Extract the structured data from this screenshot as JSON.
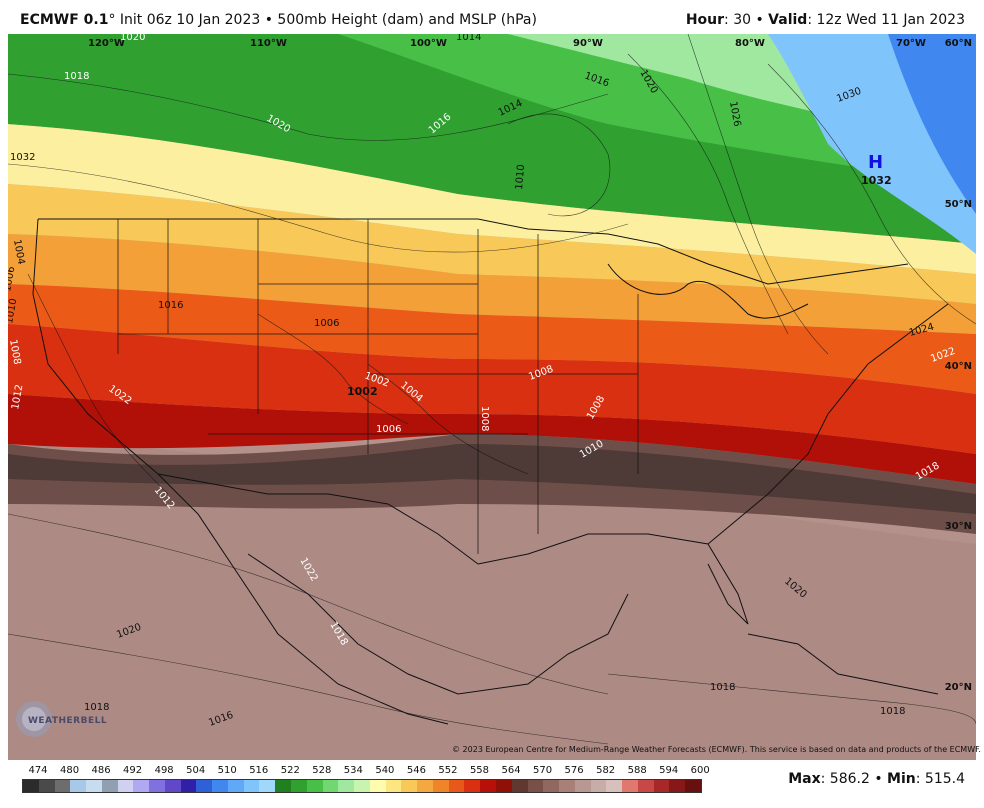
{
  "header": {
    "model": "ECMWF 0.1",
    "init": "° Init 06z 10 Jan 2023 • 500mb Height (dam) and MSLP (hPa)",
    "hour_label": "Hour",
    "hour_value": ": 30 • ",
    "valid_label": "Valid",
    "valid_value": ": 12z Wed 11 Jan 2023"
  },
  "longitude_labels": [
    "120°W",
    "110°W",
    "100°W",
    "90°W",
    "80°W",
    "70°W"
  ],
  "latitude_labels": [
    "60°N",
    "50°N",
    "40°N",
    "30°N",
    "20°N"
  ],
  "pressure_labels": [
    "1020",
    "1014",
    "1018",
    "1020",
    "1016",
    "1014",
    "1010",
    "1016",
    "1020",
    "1026",
    "1030",
    "1032",
    "1024",
    "1022",
    "1018",
    "1004",
    "1006",
    "1010",
    "1008",
    "1012",
    "1022",
    "1016",
    "1006",
    "1002",
    "1004",
    "1006",
    "1008",
    "1008",
    "1008",
    "1010",
    "1012",
    "1022",
    "1020",
    "1018",
    "1020",
    "1018",
    "1016",
    "1018",
    "1018"
  ],
  "high_label": "H",
  "high_value": "1032",
  "low_value": "1002",
  "logo_text": "WEATHERBELL",
  "copyright": "© 2023 European Centre for Medium-Range Weather Forecasts (ECMWF). This service is based on data and products of the ECMWF.",
  "legend": {
    "ticks": [
      "474",
      "480",
      "486",
      "492",
      "498",
      "504",
      "510",
      "516",
      "522",
      "528",
      "534",
      "540",
      "546",
      "552",
      "558",
      "564",
      "570",
      "576",
      "582",
      "588",
      "594",
      "600"
    ],
    "colors": [
      "#2b2b2b",
      "#4a4a4a",
      "#6d6d6d",
      "#a8c8e8",
      "#c8dcf0",
      "#90a0b0",
      "#d0d0f0",
      "#b0a8f0",
      "#8070e0",
      "#6048c8",
      "#3020a8",
      "#3060d8",
      "#4088f0",
      "#60a8f8",
      "#80c4fc",
      "#a0d8fc",
      "#208020",
      "#30a030",
      "#48c048",
      "#70d870",
      "#a0e8a0",
      "#c8f4b0",
      "#fffcb0",
      "#fce680",
      "#f8c858",
      "#f4a840",
      "#f08428",
      "#e85818",
      "#d83010",
      "#b81008",
      "#901008",
      "#603830",
      "#785048",
      "#906860",
      "#a88078",
      "#b89890",
      "#c8aca8",
      "#d8c0bc",
      "#e07870",
      "#c84848",
      "#a82828",
      "#881818",
      "#681010"
    ],
    "max_label": "Max",
    "max_value": ": 586.2 • ",
    "min_label": "Min",
    "min_value": ": 515.4"
  }
}
